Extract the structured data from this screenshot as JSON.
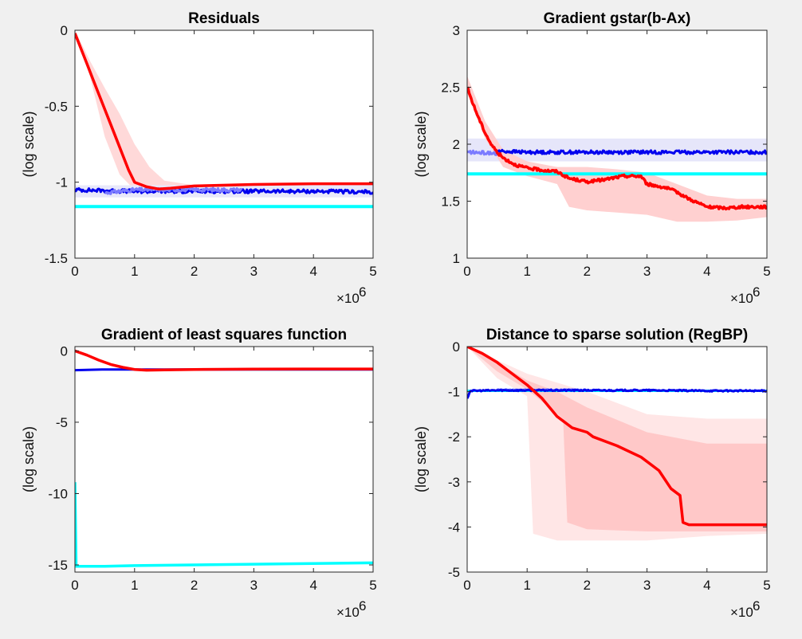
{
  "figure": {
    "background": "#f0f0f0"
  },
  "chart_data": [
    {
      "type": "line",
      "title": "Residuals",
      "ylabel": "(log scale)",
      "xlabel": "",
      "x_multiplier_label": "×10",
      "x_multiplier_exp": "6",
      "xlim": [
        0,
        5
      ],
      "ylim": [
        -1.5,
        0
      ],
      "xticks": [
        "0",
        "1",
        "2",
        "3",
        "4",
        "5"
      ],
      "yticks": [
        "-1.5",
        "-1",
        "-0.5",
        "0"
      ],
      "grid": false,
      "bands": [
        {
          "color": "#ffd9d9",
          "upper": [
            [
              0,
              0
            ],
            [
              0.25,
              -0.2
            ],
            [
              0.5,
              -0.38
            ],
            [
              0.75,
              -0.55
            ],
            [
              1,
              -0.75
            ],
            [
              1.25,
              -0.9
            ],
            [
              1.5,
              -0.99
            ],
            [
              2,
              -1.02
            ],
            [
              3,
              -1.02
            ],
            [
              4,
              -1.02
            ],
            [
              5,
              -1.02
            ]
          ],
          "lower": [
            [
              0,
              0
            ],
            [
              0.25,
              -0.3
            ],
            [
              0.5,
              -0.7
            ],
            [
              0.75,
              -0.95
            ],
            [
              1,
              -1.05
            ],
            [
              1.25,
              -1.06
            ],
            [
              1.5,
              -1.05
            ],
            [
              2,
              -1.03
            ],
            [
              3,
              -1.02
            ],
            [
              4,
              -1.02
            ],
            [
              5,
              -1.02
            ]
          ]
        },
        {
          "color": "#e8e8fa",
          "upper": [
            [
              0,
              -1.02
            ],
            [
              5,
              -1.02
            ]
          ],
          "lower": [
            [
              0,
              -1.1
            ],
            [
              5,
              -1.1
            ]
          ]
        }
      ],
      "series": [
        {
          "color": "#00ffff",
          "width": 4,
          "points": [
            [
              0,
              -1.16
            ],
            [
              5,
              -1.16
            ]
          ]
        },
        {
          "color": "#0000ee",
          "width": 3,
          "noise": 0.012,
          "points": [
            [
              0,
              -1.05
            ],
            [
              1,
              -1.06
            ],
            [
              2,
              -1.06
            ],
            [
              3,
              -1.06
            ],
            [
              4,
              -1.06
            ],
            [
              5,
              -1.065
            ]
          ]
        },
        {
          "color": "#7b7bff",
          "width": 3,
          "noise": 0.012,
          "points": [
            [
              0.5,
              -1.07
            ],
            [
              1,
              -1.05
            ],
            [
              1.5,
              -1.05
            ],
            [
              2,
              -1.05
            ],
            [
              2.8,
              -1.05
            ]
          ]
        },
        {
          "color": "#ff0000",
          "width": 3.5,
          "points": [
            [
              0,
              -0.02
            ],
            [
              0.1,
              -0.12
            ],
            [
              0.2,
              -0.22
            ],
            [
              0.3,
              -0.32
            ],
            [
              0.4,
              -0.42
            ],
            [
              0.5,
              -0.52
            ],
            [
              0.6,
              -0.62
            ],
            [
              0.7,
              -0.72
            ],
            [
              0.8,
              -0.82
            ],
            [
              0.9,
              -0.92
            ],
            [
              1,
              -1.0
            ],
            [
              1.2,
              -1.03
            ],
            [
              1.4,
              -1.045
            ],
            [
              1.6,
              -1.04
            ],
            [
              2,
              -1.025
            ],
            [
              3,
              -1.015
            ],
            [
              4,
              -1.01
            ],
            [
              5,
              -1.01
            ]
          ]
        }
      ]
    },
    {
      "type": "line",
      "title": "Gradient gstar(b-Ax)",
      "ylabel": "(log scale)",
      "xlabel": "",
      "x_multiplier_label": "×10",
      "x_multiplier_exp": "6",
      "xlim": [
        0,
        5
      ],
      "ylim": [
        1,
        3
      ],
      "xticks": [
        "0",
        "1",
        "2",
        "3",
        "4",
        "5"
      ],
      "yticks": [
        "1",
        "1.5",
        "2",
        "2.5",
        "3"
      ],
      "grid": false,
      "bands": [
        {
          "color": "#e6e6fa",
          "upper": [
            [
              0,
              2.05
            ],
            [
              5,
              2.05
            ]
          ],
          "lower": [
            [
              0,
              1.85
            ],
            [
              5,
              1.85
            ]
          ]
        },
        {
          "color": "#ffd0d0",
          "upper": [
            [
              0,
              2.6
            ],
            [
              0.3,
              2.2
            ],
            [
              0.6,
              1.95
            ],
            [
              1,
              1.85
            ],
            [
              1.5,
              1.8
            ],
            [
              2,
              1.8
            ],
            [
              2.5,
              1.78
            ],
            [
              3,
              1.75
            ],
            [
              3.5,
              1.65
            ],
            [
              4,
              1.55
            ],
            [
              4.5,
              1.52
            ],
            [
              5,
              1.52
            ]
          ],
          "lower": [
            [
              0,
              2.45
            ],
            [
              0.3,
              2.05
            ],
            [
              0.6,
              1.8
            ],
            [
              1,
              1.72
            ],
            [
              1.5,
              1.65
            ],
            [
              1.7,
              1.45
            ],
            [
              2,
              1.42
            ],
            [
              2.5,
              1.4
            ],
            [
              3,
              1.38
            ],
            [
              3.5,
              1.32
            ],
            [
              4,
              1.32
            ],
            [
              4.5,
              1.33
            ],
            [
              5,
              1.36
            ]
          ]
        }
      ],
      "series": [
        {
          "color": "#00ffff",
          "width": 4,
          "points": [
            [
              0,
              1.74
            ],
            [
              5,
              1.74
            ]
          ]
        },
        {
          "color": "#0000ee",
          "width": 3,
          "noise": 0.015,
          "points": [
            [
              0.5,
              1.94
            ],
            [
              1,
              1.93
            ],
            [
              2,
              1.93
            ],
            [
              3,
              1.93
            ],
            [
              4,
              1.93
            ],
            [
              5,
              1.93
            ]
          ]
        },
        {
          "color": "#7b7bff",
          "width": 3,
          "noise": 0.015,
          "points": [
            [
              0,
              1.93
            ],
            [
              0.5,
              1.92
            ]
          ]
        },
        {
          "color": "#ff0000",
          "width": 3.5,
          "noise": 0.012,
          "points": [
            [
              0,
              2.5
            ],
            [
              0.1,
              2.35
            ],
            [
              0.2,
              2.22
            ],
            [
              0.3,
              2.1
            ],
            [
              0.4,
              2.0
            ],
            [
              0.5,
              1.93
            ],
            [
              0.6,
              1.88
            ],
            [
              0.8,
              1.82
            ],
            [
              1,
              1.79
            ],
            [
              1.3,
              1.77
            ],
            [
              1.5,
              1.76
            ],
            [
              1.7,
              1.7
            ],
            [
              2,
              1.67
            ],
            [
              2.3,
              1.69
            ],
            [
              2.6,
              1.72
            ],
            [
              2.9,
              1.72
            ],
            [
              3,
              1.65
            ],
            [
              3.3,
              1.62
            ],
            [
              3.5,
              1.58
            ],
            [
              3.7,
              1.52
            ],
            [
              4,
              1.45
            ],
            [
              4.3,
              1.44
            ],
            [
              4.6,
              1.45
            ],
            [
              5,
              1.45
            ]
          ]
        }
      ]
    },
    {
      "type": "line",
      "title": "Gradient of least squares function",
      "ylabel": "(log scale)",
      "xlabel": "",
      "x_multiplier_label": "×10",
      "x_multiplier_exp": "6",
      "xlim": [
        0,
        5
      ],
      "ylim": [
        -15.5,
        0.3
      ],
      "xticks": [
        "0",
        "1",
        "2",
        "3",
        "4",
        "5"
      ],
      "yticks": [
        "-15",
        "-10",
        "-5",
        "0"
      ],
      "grid": false,
      "bands": [],
      "series": [
        {
          "color": "#00ffff",
          "width": 3.5,
          "points": [
            [
              0,
              -9.2
            ],
            [
              0.02,
              -15.1
            ],
            [
              0.5,
              -15.1
            ],
            [
              1,
              -15.05
            ],
            [
              2,
              -15.0
            ],
            [
              3,
              -14.95
            ],
            [
              4,
              -14.9
            ],
            [
              5,
              -14.85
            ]
          ]
        },
        {
          "color": "#0000ee",
          "width": 3,
          "points": [
            [
              0,
              -1.35
            ],
            [
              0.5,
              -1.3
            ],
            [
              1,
              -1.3
            ],
            [
              2,
              -1.3
            ],
            [
              3,
              -1.3
            ],
            [
              4,
              -1.3
            ],
            [
              5,
              -1.3
            ]
          ]
        },
        {
          "color": "#ff0000",
          "width": 3.5,
          "points": [
            [
              0,
              0
            ],
            [
              0.2,
              -0.3
            ],
            [
              0.4,
              -0.65
            ],
            [
              0.6,
              -0.95
            ],
            [
              0.8,
              -1.15
            ],
            [
              1,
              -1.3
            ],
            [
              1.2,
              -1.35
            ],
            [
              1.5,
              -1.33
            ],
            [
              2,
              -1.3
            ],
            [
              3,
              -1.28
            ],
            [
              4,
              -1.27
            ],
            [
              5,
              -1.27
            ]
          ]
        }
      ]
    },
    {
      "type": "line",
      "title": "Distance to sparse solution (RegBP)",
      "ylabel": "(log scale)",
      "xlabel": "",
      "x_multiplier_label": "×10",
      "x_multiplier_exp": "6",
      "xlim": [
        0,
        5
      ],
      "ylim": [
        -5,
        0
      ],
      "xticks": [
        "0",
        "1",
        "2",
        "3",
        "4",
        "5"
      ],
      "yticks": [
        "-5",
        "-4",
        "-3",
        "-2",
        "-1",
        "0"
      ],
      "grid": false,
      "bands": [
        {
          "color": "#ffe6e6",
          "upper": [
            [
              0,
              0
            ],
            [
              0.5,
              -0.3
            ],
            [
              1,
              -0.6
            ],
            [
              1.5,
              -0.8
            ],
            [
              2,
              -1.0
            ],
            [
              3,
              -1.5
            ],
            [
              4,
              -1.6
            ],
            [
              5,
              -1.6
            ]
          ],
          "lower": [
            [
              0,
              0
            ],
            [
              0.5,
              -0.7
            ],
            [
              1,
              -1.1
            ],
            [
              1.1,
              -4.15
            ],
            [
              1.5,
              -4.3
            ],
            [
              2,
              -4.3
            ],
            [
              3,
              -4.3
            ],
            [
              4,
              -4.2
            ],
            [
              5,
              -4.15
            ]
          ]
        },
        {
          "color": "#ffc8c8",
          "upper": [
            [
              0,
              0
            ],
            [
              0.5,
              -0.35
            ],
            [
              1,
              -0.75
            ],
            [
              1.5,
              -1.0
            ],
            [
              2,
              -1.35
            ],
            [
              3,
              -1.9
            ],
            [
              4,
              -2.15
            ],
            [
              5,
              -2.15
            ]
          ],
          "lower": [
            [
              0,
              0
            ],
            [
              0.5,
              -0.55
            ],
            [
              1,
              -0.95
            ],
            [
              1.6,
              -1.6
            ],
            [
              1.67,
              -3.9
            ],
            [
              2,
              -4.05
            ],
            [
              3,
              -4.1
            ],
            [
              4,
              -4.1
            ],
            [
              5,
              -4.1
            ]
          ]
        }
      ],
      "series": [
        {
          "color": "#00ffff",
          "width": 3,
          "points": [
            [
              0,
              -0.98
            ],
            [
              5,
              -0.98
            ]
          ]
        },
        {
          "color": "#7b7bff",
          "width": 3,
          "noise": 0.012,
          "points": [
            [
              0.5,
              -0.96
            ],
            [
              1,
              -0.96
            ],
            [
              2,
              -0.96
            ]
          ]
        },
        {
          "color": "#0000ee",
          "width": 3,
          "noise": 0.015,
          "points": [
            [
              0,
              -1.15
            ],
            [
              0.05,
              -0.98
            ],
            [
              0.5,
              -0.97
            ],
            [
              1,
              -0.97
            ],
            [
              2,
              -0.97
            ],
            [
              3,
              -0.97
            ],
            [
              4,
              -0.98
            ],
            [
              5,
              -0.98
            ]
          ]
        },
        {
          "color": "#ff0000",
          "width": 3.5,
          "points": [
            [
              0,
              0
            ],
            [
              0.25,
              -0.15
            ],
            [
              0.5,
              -0.35
            ],
            [
              0.75,
              -0.6
            ],
            [
              1,
              -0.85
            ],
            [
              1.25,
              -1.15
            ],
            [
              1.5,
              -1.55
            ],
            [
              1.75,
              -1.8
            ],
            [
              2,
              -1.9
            ],
            [
              2.1,
              -2.0
            ],
            [
              2.5,
              -2.2
            ],
            [
              2.9,
              -2.45
            ],
            [
              3.2,
              -2.75
            ],
            [
              3.4,
              -3.15
            ],
            [
              3.55,
              -3.3
            ],
            [
              3.6,
              -3.9
            ],
            [
              3.7,
              -3.95
            ],
            [
              4,
              -3.95
            ],
            [
              5,
              -3.95
            ]
          ]
        }
      ]
    }
  ]
}
